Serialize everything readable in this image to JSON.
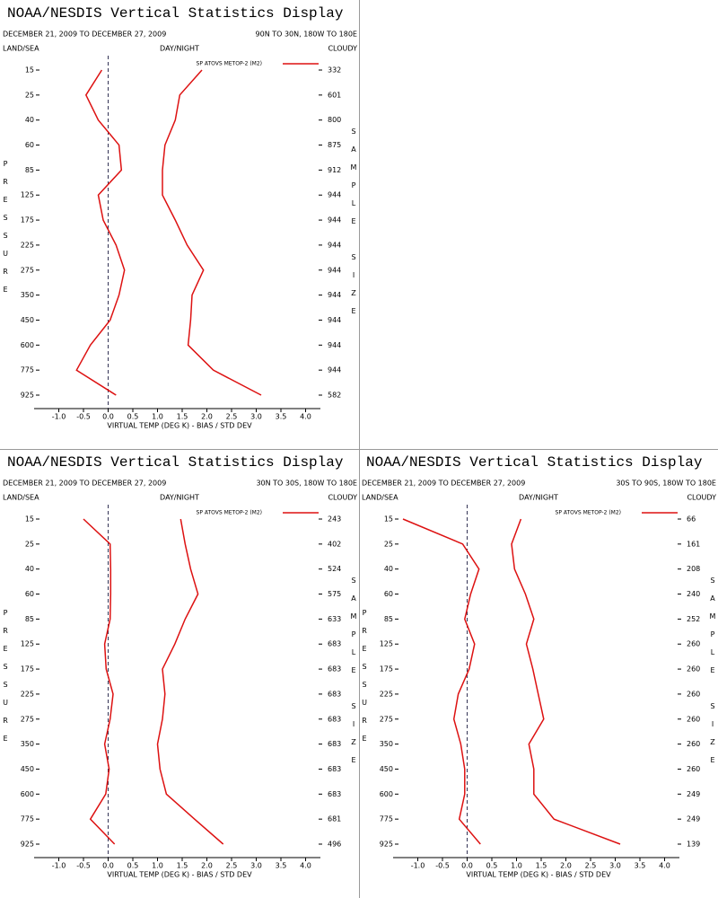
{
  "chart_data": [
    {
      "type": "line",
      "title": "NOAA/NESDIS Vertical Statistics Display",
      "subtitle": "DECEMBER 21, 2009 TO DECEMBER 27, 2009",
      "region": "90N TO 30N, 180W TO 180E",
      "left_label": "LAND/SEA",
      "center_label": "DAY/NIGHT",
      "right_label": "CLOUDY",
      "x_label": "VIRTUAL TEMP (DEG K) - BIAS / STD DEV",
      "y_label": "PRESSURE",
      "y2_label": "SAMPLE SIZE",
      "categories": [
        "15",
        "25",
        "40",
        "60",
        "85",
        "125",
        "175",
        "225",
        "275",
        "350",
        "450",
        "600",
        "775",
        "925"
      ],
      "sample_sizes": [
        "332",
        "601",
        "800",
        "875",
        "912",
        "944",
        "944",
        "944",
        "944",
        "944",
        "944",
        "944",
        "944",
        "582"
      ],
      "series": [
        {
          "name": "SP ATOVS METOP-2 (M2)",
          "color": "#dd1111",
          "values": [
            -0.13,
            -0.45,
            -0.2,
            0.22,
            0.27,
            -0.2,
            -0.1,
            0.16,
            0.33,
            0.22,
            0.04,
            -0.36,
            -0.64,
            0.16
          ]
        },
        {
          "color": "#dd1111",
          "values": [
            1.9,
            1.45,
            1.36,
            1.15,
            1.1,
            1.1,
            1.36,
            1.6,
            1.93,
            1.7,
            1.67,
            1.62,
            2.13,
            3.1
          ]
        }
      ],
      "xlim": [
        -1.5,
        4.3
      ],
      "xticks": [
        {
          "value": -1,
          "label": "-1.0"
        },
        -0.5,
        {
          "value": 0,
          "label": "0.0"
        },
        0.5,
        {
          "value": 1,
          "label": "1.0"
        },
        1.5,
        {
          "value": 2,
          "label": "2.0"
        },
        2.5,
        {
          "value": 3,
          "label": "3.0"
        },
        3.5,
        {
          "value": 4,
          "label": "4.0"
        }
      ]
    },
    {
      "type": "line",
      "title": "NOAA/NESDIS Vertical Statistics Display",
      "subtitle": "DECEMBER 21, 2009 TO DECEMBER 27, 2009",
      "region": "30N TO 30S, 180W TO 180E",
      "left_label": "LAND/SEA",
      "center_label": "DAY/NIGHT",
      "right_label": "CLOUDY",
      "x_label": "VIRTUAL TEMP (DEG K) - BIAS / STD DEV",
      "y_label": "PRESSURE",
      "y2_label": "SAMPLE SIZE",
      "categories": [
        "15",
        "25",
        "40",
        "60",
        "85",
        "125",
        "175",
        "225",
        "275",
        "350",
        "450",
        "600",
        "775",
        "925"
      ],
      "sample_sizes": [
        "243",
        "402",
        "524",
        "575",
        "633",
        "683",
        "683",
        "683",
        "683",
        "683",
        "683",
        "683",
        "681",
        "496"
      ],
      "series": [
        {
          "name": "SP ATOVS METOP-2 (M2)",
          "color": "#dd1111",
          "values": [
            -0.5,
            0.04,
            0.05,
            0.05,
            0.04,
            -0.07,
            -0.04,
            0.1,
            0.04,
            -0.07,
            0.02,
            -0.05,
            -0.36,
            0.13
          ]
        },
        {
          "color": "#dd1111",
          "values": [
            1.47,
            1.56,
            1.67,
            1.82,
            1.56,
            1.35,
            1.1,
            1.15,
            1.1,
            1.0,
            1.05,
            1.18,
            1.75,
            2.33
          ]
        }
      ],
      "xlim": [
        -1.5,
        4.3
      ],
      "xticks": [
        {
          "value": -1,
          "label": "-1.0"
        },
        -0.5,
        {
          "value": 0,
          "label": "0.0"
        },
        0.5,
        {
          "value": 1,
          "label": "1.0"
        },
        1.5,
        {
          "value": 2,
          "label": "2.0"
        },
        2.5,
        {
          "value": 3,
          "label": "3.0"
        },
        3.5,
        {
          "value": 4,
          "label": "4.0"
        }
      ]
    },
    {
      "type": "line",
      "title": "NOAA/NESDIS Vertical Statistics Display",
      "subtitle": "DECEMBER 21, 2009 TO DECEMBER 27, 2009",
      "region": "30S TO 90S, 180W TO 180E",
      "left_label": "LAND/SEA",
      "center_label": "DAY/NIGHT",
      "right_label": "CLOUDY",
      "x_label": "VIRTUAL TEMP (DEG K) - BIAS / STD DEV",
      "y_label": "PRESSURE",
      "y2_label": "SAMPLE SIZE",
      "categories": [
        "15",
        "25",
        "40",
        "60",
        "85",
        "125",
        "175",
        "225",
        "275",
        "350",
        "450",
        "600",
        "775",
        "925"
      ],
      "sample_sizes": [
        "66",
        "161",
        "208",
        "240",
        "252",
        "260",
        "260",
        "260",
        "260",
        "260",
        "260",
        "249",
        "249",
        "139"
      ],
      "series": [
        {
          "name": "SP ATOVS METOP-2 (M2)",
          "color": "#dd1111",
          "values": [
            -1.3,
            -0.09,
            0.24,
            0.07,
            -0.05,
            0.15,
            0.04,
            -0.18,
            -0.27,
            -0.13,
            -0.05,
            -0.05,
            -0.16,
            0.27
          ]
        },
        {
          "color": "#dd1111",
          "values": [
            1.09,
            0.9,
            0.96,
            1.18,
            1.35,
            1.2,
            1.33,
            1.44,
            1.55,
            1.25,
            1.35,
            1.35,
            1.76,
            3.1
          ]
        }
      ],
      "xlim": [
        -1.5,
        4.3
      ],
      "xticks": [
        {
          "value": -1,
          "label": "-1.0"
        },
        -0.5,
        {
          "value": 0,
          "label": "0.0"
        },
        0.5,
        {
          "value": 1,
          "label": "1.0"
        },
        1.5,
        {
          "value": 2,
          "label": "2.0"
        },
        2.5,
        {
          "value": 3,
          "label": "3.0"
        },
        3.5,
        {
          "value": 4,
          "label": "4.0"
        }
      ]
    }
  ]
}
